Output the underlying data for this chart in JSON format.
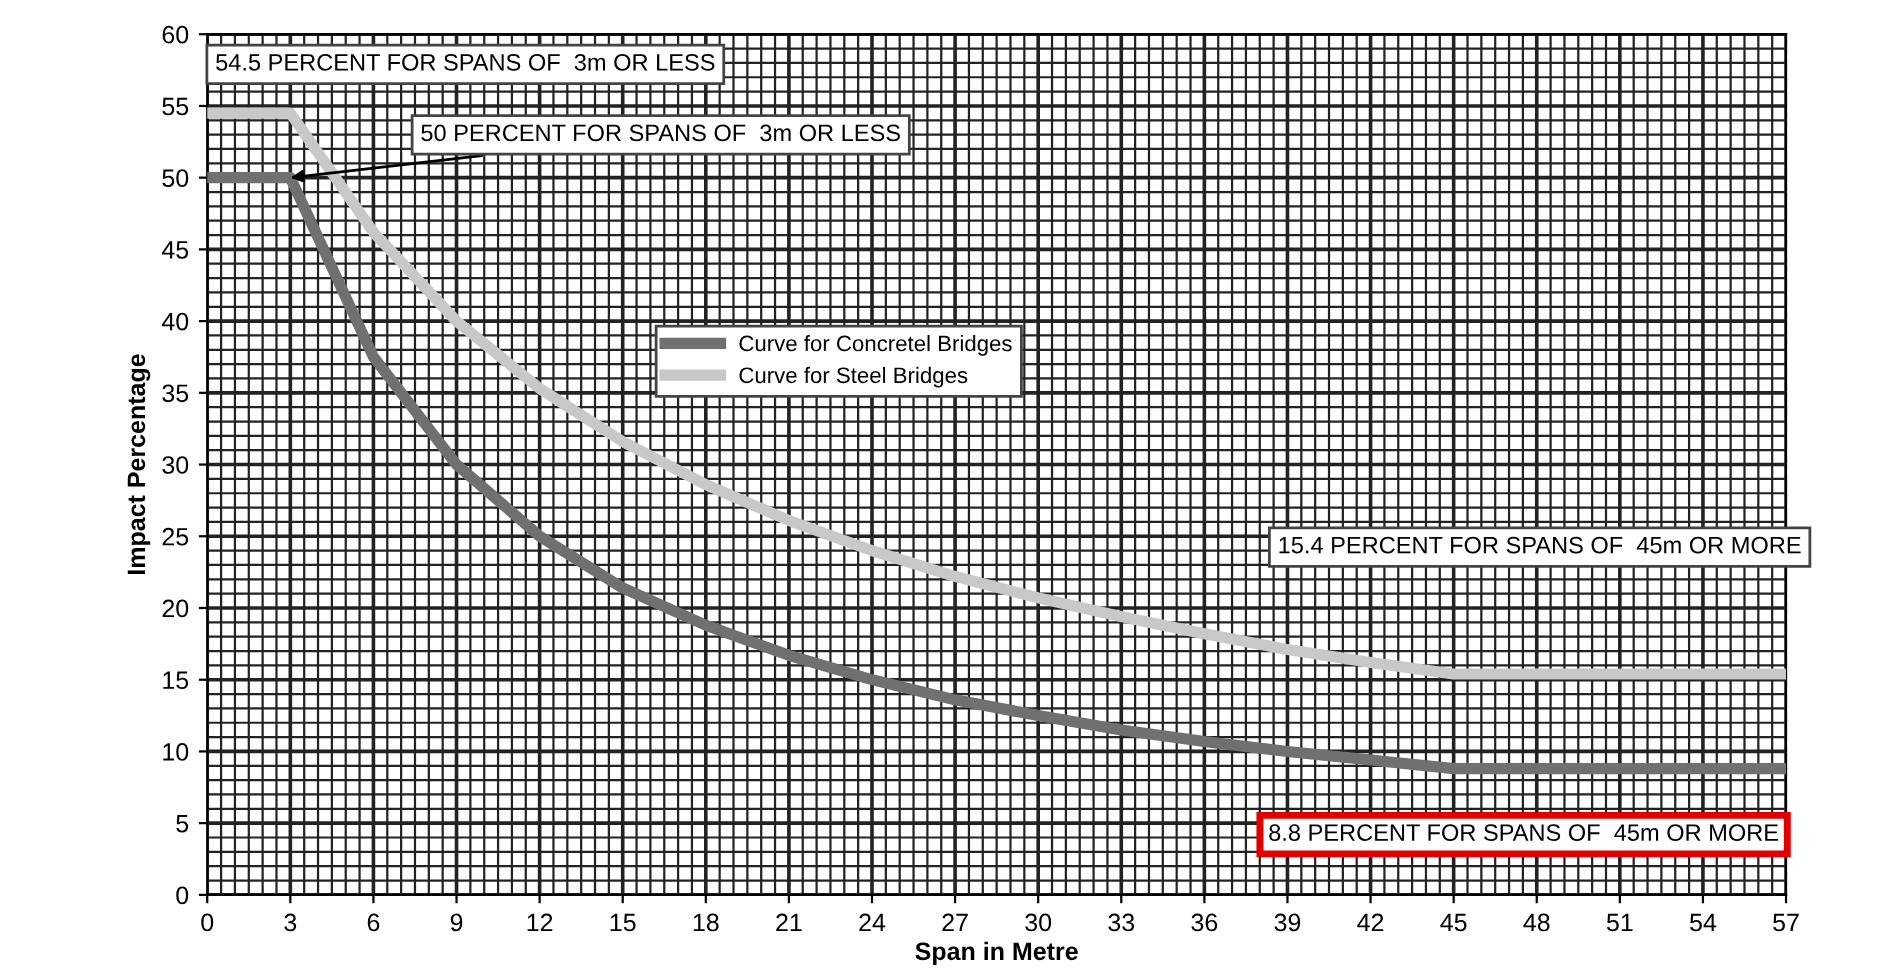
{
  "chart_data": {
    "type": "line",
    "xlabel": "Span in Metre",
    "ylabel": "Impact Percentage",
    "xlim": [
      0,
      57
    ],
    "xticks": [
      0,
      3,
      6,
      9,
      12,
      15,
      18,
      21,
      24,
      27,
      30,
      33,
      36,
      39,
      42,
      45,
      48,
      51,
      54,
      57
    ],
    "ylim": [
      0,
      60
    ],
    "yticks": [
      0,
      5,
      10,
      15,
      20,
      25,
      30,
      35,
      40,
      45,
      50,
      55,
      60
    ],
    "grid": true,
    "legend": "center",
    "marker": "none",
    "line_style": "solid",
    "series": [
      {
        "name": "Curve for Concretel Bridges",
        "color": "#707070",
        "x": [
          0,
          3,
          6,
          9,
          12,
          15,
          18,
          21,
          24,
          27,
          30,
          33,
          36,
          39,
          42,
          45,
          57
        ],
        "values": [
          50,
          50,
          37.5,
          30,
          25,
          21.4,
          18.8,
          16.7,
          15,
          13.6,
          12.5,
          11.5,
          10.7,
          10,
          9.4,
          8.8,
          8.8
        ]
      },
      {
        "name": "Curve for Steel Bridges",
        "color": "#c8c8c8",
        "x": [
          0,
          3,
          6,
          9,
          12,
          15,
          18,
          21,
          24,
          27,
          30,
          33,
          36,
          39,
          42,
          45,
          57
        ],
        "values": [
          54.5,
          54.5,
          46.2,
          40,
          35.3,
          31.6,
          28.6,
          26.1,
          24,
          22.2,
          20.7,
          19.4,
          18.2,
          17.1,
          16.2,
          15.4,
          15.4
        ]
      }
    ],
    "annotations": [
      "54.5 PERCENT FOR SPANS OF  3m OR LESS",
      {
        "text": "50 PERCENT FOR SPANS OF  3m OR LESS",
        "x": 3,
        "y": 50
      },
      "15.4 PERCENT FOR SPANS OF  45m OR MORE",
      "8.8 PERCENT FOR SPANS OF  45m OR MORE"
    ]
  }
}
